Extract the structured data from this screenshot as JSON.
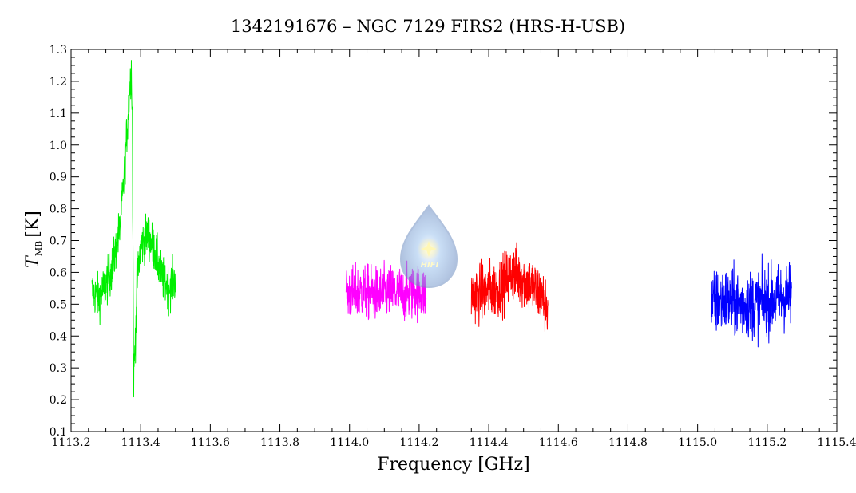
{
  "chart_data": {
    "type": "line",
    "title": "1342191676 – NGC 7129 FIRS2 (HRS-H-USB)",
    "xlabel": "Frequency [GHz]",
    "ylabel": {
      "symbol": "T",
      "subscript": "MB",
      "unit": "[K]"
    },
    "xlim": [
      1113.2,
      1115.4
    ],
    "ylim": [
      0.1,
      1.3
    ],
    "xticks": [
      1113.2,
      1113.4,
      1113.6,
      1113.8,
      1114.0,
      1114.2,
      1114.4,
      1114.6,
      1114.8,
      1115.0,
      1115.2,
      1115.4
    ],
    "xtick_labels": [
      "1113.2",
      "1113.4",
      "1113.6",
      "1113.8",
      "1114.0",
      "1114.2",
      "1114.4",
      "1114.6",
      "1114.8",
      "1115.0",
      "1115.2",
      "1115.4"
    ],
    "yticks": [
      0.1,
      0.2,
      0.3,
      0.4,
      0.5,
      0.6,
      0.7,
      0.8,
      0.9,
      1.0,
      1.1,
      1.2,
      1.3
    ],
    "ytick_labels": [
      "0.1",
      "0.2",
      "0.3",
      "0.4",
      "0.5",
      "0.6",
      "0.7",
      "0.8",
      "0.9",
      "1.0",
      "1.1",
      "1.2",
      "1.3"
    ],
    "grid": false,
    "series": [
      {
        "color": "#00ee00",
        "x": [
          1113.26,
          1113.28,
          1113.3,
          1113.32,
          1113.33,
          1113.34,
          1113.35,
          1113.355,
          1113.36,
          1113.365,
          1113.37,
          1113.373,
          1113.376,
          1113.378,
          1113.38,
          1113.385,
          1113.39,
          1113.4,
          1113.42,
          1113.44,
          1113.46,
          1113.48,
          1113.5
        ],
        "y": [
          0.54,
          0.52,
          0.56,
          0.62,
          0.68,
          0.74,
          0.86,
          0.95,
          1.03,
          1.12,
          1.2,
          1.24,
          1.1,
          0.62,
          0.27,
          0.4,
          0.58,
          0.68,
          0.72,
          0.67,
          0.59,
          0.55,
          0.58
        ],
        "noise": 0.05
      },
      {
        "color": "#ff00ff",
        "x": [
          1113.99,
          1114.04,
          1114.08,
          1114.12,
          1114.16,
          1114.2,
          1114.22
        ],
        "y": [
          0.53,
          0.54,
          0.53,
          0.54,
          0.53,
          0.54,
          0.53
        ],
        "noise": 0.06
      },
      {
        "color": "#ff0000",
        "x": [
          1114.35,
          1114.39,
          1114.43,
          1114.47,
          1114.51,
          1114.54,
          1114.57
        ],
        "y": [
          0.53,
          0.54,
          0.55,
          0.6,
          0.57,
          0.54,
          0.49
        ],
        "noise": 0.065
      },
      {
        "color": "#0000ff",
        "x": [
          1115.04,
          1115.08,
          1115.12,
          1115.16,
          1115.2,
          1115.24,
          1115.27
        ],
        "y": [
          0.5,
          0.51,
          0.5,
          0.5,
          0.51,
          0.52,
          0.53
        ],
        "noise": 0.075
      }
    ]
  },
  "logo": {
    "text": "HIFI"
  }
}
